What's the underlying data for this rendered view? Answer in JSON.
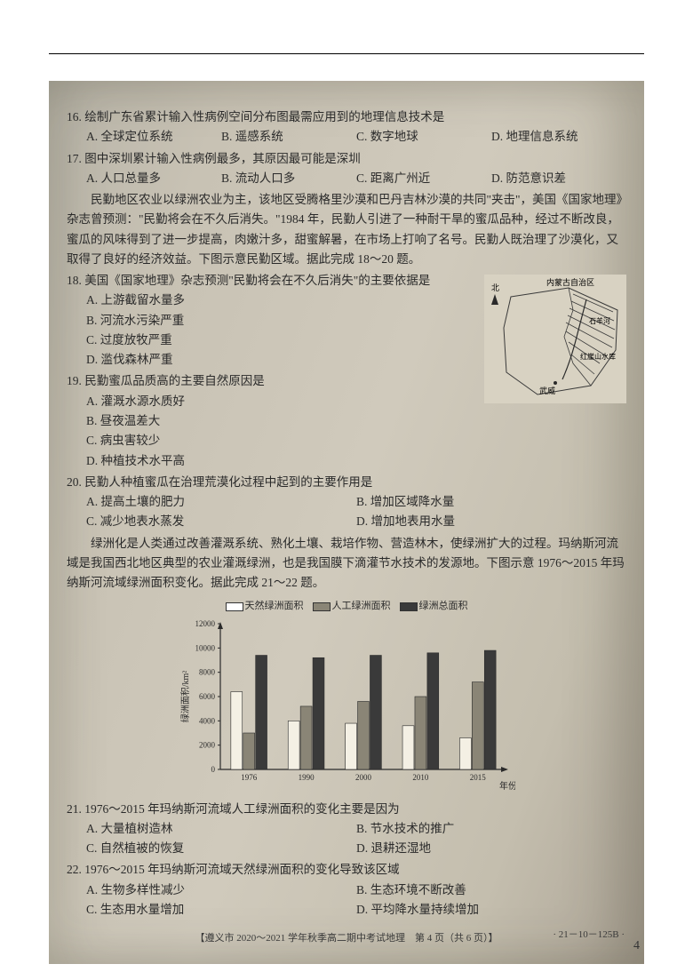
{
  "q16": {
    "stem": "16. 绘制广东省累计输入性病例空间分布图最需应用到的地理信息技术是",
    "opts": [
      "A. 全球定位系统",
      "B. 遥感系统",
      "C. 数字地球",
      "D. 地理信息系统"
    ]
  },
  "q17": {
    "stem": "17. 图中深圳累计输入性病例最多，其原因最可能是深圳",
    "opts": [
      "A. 人口总量多",
      "B. 流动人口多",
      "C. 距离广州近",
      "D. 防范意识差"
    ]
  },
  "passage1a": "民勤地区农业以绿洲农业为主，该地区受腾格里沙漠和巴丹吉林沙漠的共同\"夹击\"，美国《国家地理》杂志曾预测：\"民勤将会在不久后消失。\"1984 年，民勤人引进了一种耐干旱的蜜瓜品种，经过不断改良，蜜瓜的风味得到了进一步提高，肉嫩汁多，甜蜜解暑，在市场上打响了名号。民勤人既治理了沙漠化，又取得了良好的经济效益。下图示意民勤区域。据此完成 18～20 题。",
  "map_labels": {
    "region1": "内蒙古自治区",
    "river": "石羊河",
    "city": "武威",
    "dash": "红崖山水库",
    "north": "北"
  },
  "q18": {
    "stem": "18. 美国《国家地理》杂志预测\"民勤将会在不久后消失\"的主要依据是",
    "opts": [
      "A. 上游截留水量多",
      "B. 河流水污染严重",
      "C. 过度放牧严重",
      "D. 滥伐森林严重"
    ]
  },
  "q19": {
    "stem": "19. 民勤蜜瓜品质高的主要自然原因是",
    "opts": [
      "A. 灌溉水源水质好",
      "B. 昼夜温差大",
      "C. 病虫害较少",
      "D. 种植技术水平高"
    ]
  },
  "q20": {
    "stem": "20. 民勤人种植蜜瓜在治理荒漠化过程中起到的主要作用是",
    "opts": [
      "A. 提高土壤的肥力",
      "B. 增加区域降水量",
      "C. 减少地表水蒸发",
      "D. 增加地表用水量"
    ]
  },
  "passage2": "绿洲化是人类通过改善灌溉系统、熟化土壤、栽培作物、营造林木，使绿洲扩大的过程。玛纳斯河流域是我国西北地区典型的农业灌溉绿洲，也是我国膜下滴灌节水技术的发源地。下图示意 1976～2015 年玛纳斯河流域绿洲面积变化。据此完成 21～22 题。",
  "chart": {
    "legend": [
      "天然绿洲面积",
      "人工绿洲面积",
      "绿洲总面积"
    ],
    "legend_colors": [
      "#ffffff",
      "#8a8576",
      "#3a3a3a"
    ],
    "ylabel": "绿洲面积/km²",
    "xlabel": "年份",
    "ymax": 12000,
    "ytick": 2000,
    "categories": [
      "1976",
      "1990",
      "2000",
      "2010",
      "2015"
    ],
    "series": {
      "natural": [
        6400,
        4000,
        3800,
        3600,
        2600
      ],
      "manmade": [
        3000,
        5200,
        5600,
        6000,
        7200
      ],
      "total": [
        9400,
        9200,
        9400,
        9600,
        9800
      ]
    },
    "bar_colors": [
      "#f4f0e4",
      "#8a8576",
      "#3a3a3a"
    ],
    "bg": "#d4cebe",
    "axis_color": "#2a2a2a"
  },
  "q21": {
    "stem": "21. 1976～2015 年玛纳斯河流域人工绿洲面积的变化主要是因为",
    "opts": [
      "A. 大量植树造林",
      "B. 节水技术的推广",
      "C. 自然植被的恢复",
      "D. 退耕还湿地"
    ]
  },
  "q22": {
    "stem": "22. 1976～2015 年玛纳斯河流域天然绿洲面积的变化导致该区域",
    "opts": [
      "A. 生物多样性减少",
      "B. 生态环境不断改善",
      "C. 生态用水量增加",
      "D. 平均降水量持续增加"
    ]
  },
  "footer": "【遵义市 2020～2021 学年秋季高二期中考试地理　第 4 页（共 6 页）】",
  "footer_right": "· 21－10－125B ·",
  "page_num": "4"
}
